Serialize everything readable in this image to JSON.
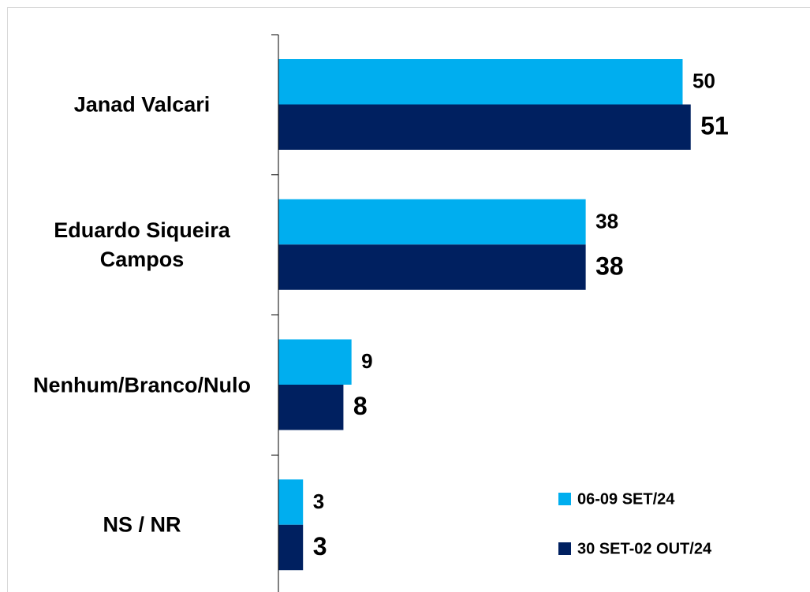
{
  "chart_data": {
    "type": "bar",
    "orientation": "horizontal",
    "categories": [
      "Janad Valcari",
      "Eduardo Siqueira Campos",
      "Nenhum/Branco/Nulo",
      "NS / NR"
    ],
    "series": [
      {
        "name": "06-09 SET/24",
        "color": "#00aeef",
        "values": [
          50,
          38,
          9,
          3
        ]
      },
      {
        "name": "30 SET-02 OUT/24",
        "color": "#002060",
        "values": [
          51,
          38,
          8,
          3
        ]
      }
    ],
    "legend": "lower right"
  }
}
